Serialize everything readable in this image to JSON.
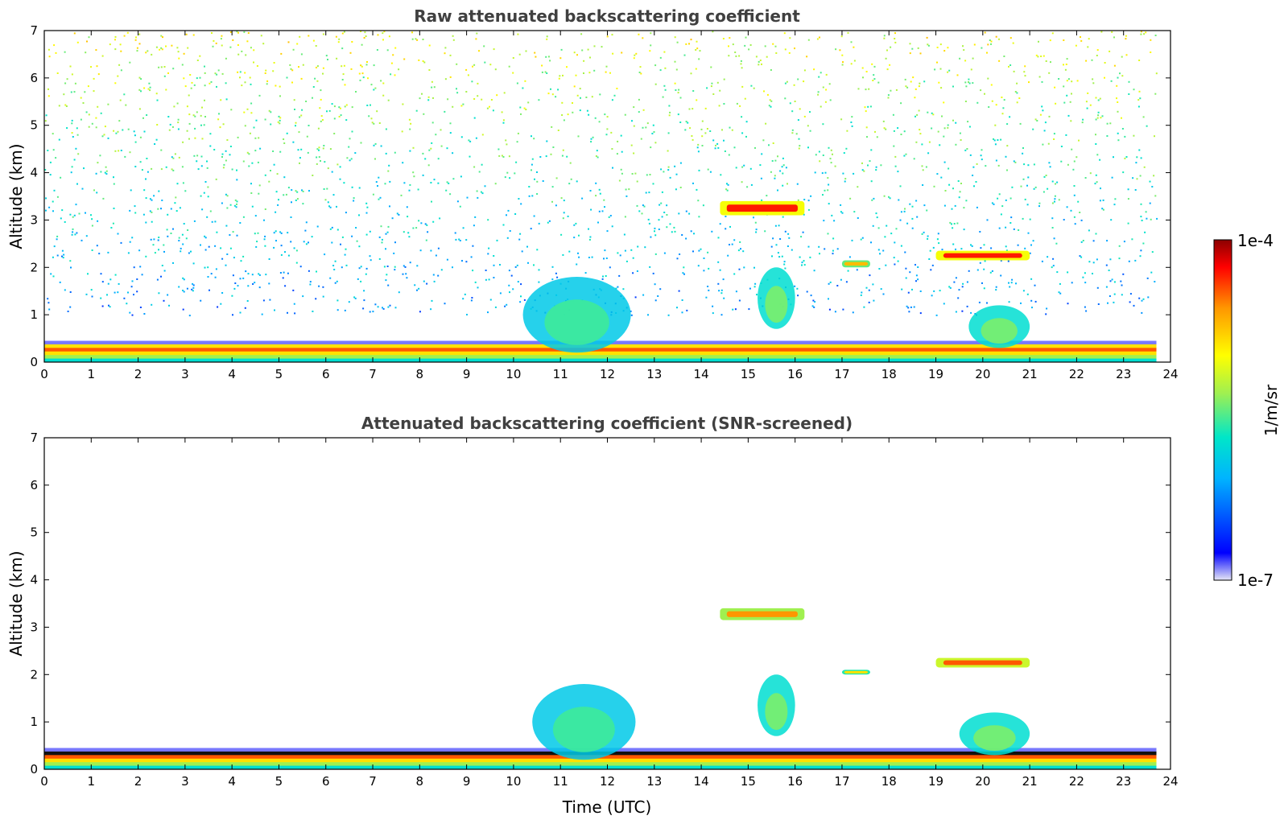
{
  "chart_data": [
    {
      "type": "heatmap",
      "title": "Raw attenuated backscattering coefficient",
      "xlabel": "",
      "ylabel": "Altitude (km)",
      "xlim": [
        0,
        24
      ],
      "ylim": [
        0,
        7
      ],
      "x_ticks": [
        "0",
        "1",
        "2",
        "3",
        "4",
        "5",
        "6",
        "7",
        "8",
        "9",
        "10",
        "11",
        "12",
        "13",
        "14",
        "15",
        "16",
        "17",
        "18",
        "19",
        "20",
        "21",
        "22",
        "23",
        "24"
      ],
      "y_ticks": [
        "0",
        "1",
        "2",
        "3",
        "4",
        "5",
        "6",
        "7"
      ],
      "grid": false,
      "features": [
        {
          "kind": "boundary-layer",
          "x": [
            0,
            23.7
          ],
          "y": [
            0,
            0.45
          ],
          "level": 0.85
        },
        {
          "kind": "noise-background",
          "x": [
            0,
            23.7
          ],
          "y": [
            1.0,
            7
          ],
          "level": 0.55
        },
        {
          "kind": "cloud-layer",
          "x": [
            14.4,
            16.2
          ],
          "y": [
            3.1,
            3.4
          ],
          "level": 0.9
        },
        {
          "kind": "cloud-layer",
          "x": [
            19.0,
            21.0
          ],
          "y": [
            2.15,
            2.35
          ],
          "level": 0.9
        },
        {
          "kind": "cloud-layer",
          "x": [
            17.0,
            17.6
          ],
          "y": [
            2.0,
            2.15
          ],
          "level": 0.75
        },
        {
          "kind": "convective-plume",
          "x": [
            10.2,
            12.5
          ],
          "y": [
            0.2,
            1.8
          ],
          "level": 0.35
        },
        {
          "kind": "convective-plume",
          "x": [
            15.2,
            16.0
          ],
          "y": [
            0.7,
            2.0
          ],
          "level": 0.4
        },
        {
          "kind": "convective-plume",
          "x": [
            19.7,
            21.0
          ],
          "y": [
            0.3,
            1.2
          ],
          "level": 0.4
        }
      ]
    },
    {
      "type": "heatmap",
      "title": "Attenuated backscattering coefficient (SNR-screened)",
      "xlabel": "Time (UTC)",
      "ylabel": "Altitude (km)",
      "xlim": [
        0,
        24
      ],
      "ylim": [
        0,
        7
      ],
      "x_ticks": [
        "0",
        "1",
        "2",
        "3",
        "4",
        "5",
        "6",
        "7",
        "8",
        "9",
        "10",
        "11",
        "12",
        "13",
        "14",
        "15",
        "16",
        "17",
        "18",
        "19",
        "20",
        "21",
        "22",
        "23",
        "24"
      ],
      "y_ticks": [
        "0",
        "1",
        "2",
        "3",
        "4",
        "5",
        "6",
        "7"
      ],
      "grid": false,
      "features": [
        {
          "kind": "boundary-layer",
          "x": [
            0,
            23.7
          ],
          "y": [
            0,
            0.45
          ],
          "level": 0.85
        },
        {
          "kind": "cloud-layer",
          "x": [
            14.4,
            16.2
          ],
          "y": [
            3.15,
            3.4
          ],
          "level": 0.8
        },
        {
          "kind": "cloud-layer",
          "x": [
            19.0,
            21.0
          ],
          "y": [
            2.15,
            2.35
          ],
          "level": 0.85
        },
        {
          "kind": "cloud-layer",
          "x": [
            17.0,
            17.6
          ],
          "y": [
            2.0,
            2.1
          ],
          "level": 0.7
        },
        {
          "kind": "convective-plume",
          "x": [
            10.4,
            12.6
          ],
          "y": [
            0.2,
            1.8
          ],
          "level": 0.35
        },
        {
          "kind": "convective-plume",
          "x": [
            15.2,
            16.0
          ],
          "y": [
            0.7,
            2.0
          ],
          "level": 0.4
        },
        {
          "kind": "convective-plume",
          "x": [
            19.5,
            21.0
          ],
          "y": [
            0.3,
            1.2
          ],
          "level": 0.4
        }
      ]
    }
  ],
  "colorbar": {
    "max_label": "1e-4",
    "min_label": "1e-7",
    "unit_label": "1/m/sr",
    "colors": [
      "#e6e6f5",
      "#0000ff",
      "#00b4ff",
      "#00e6c8",
      "#a0f050",
      "#ffff00",
      "#ff9600",
      "#ff0000",
      "#8c0000"
    ]
  }
}
